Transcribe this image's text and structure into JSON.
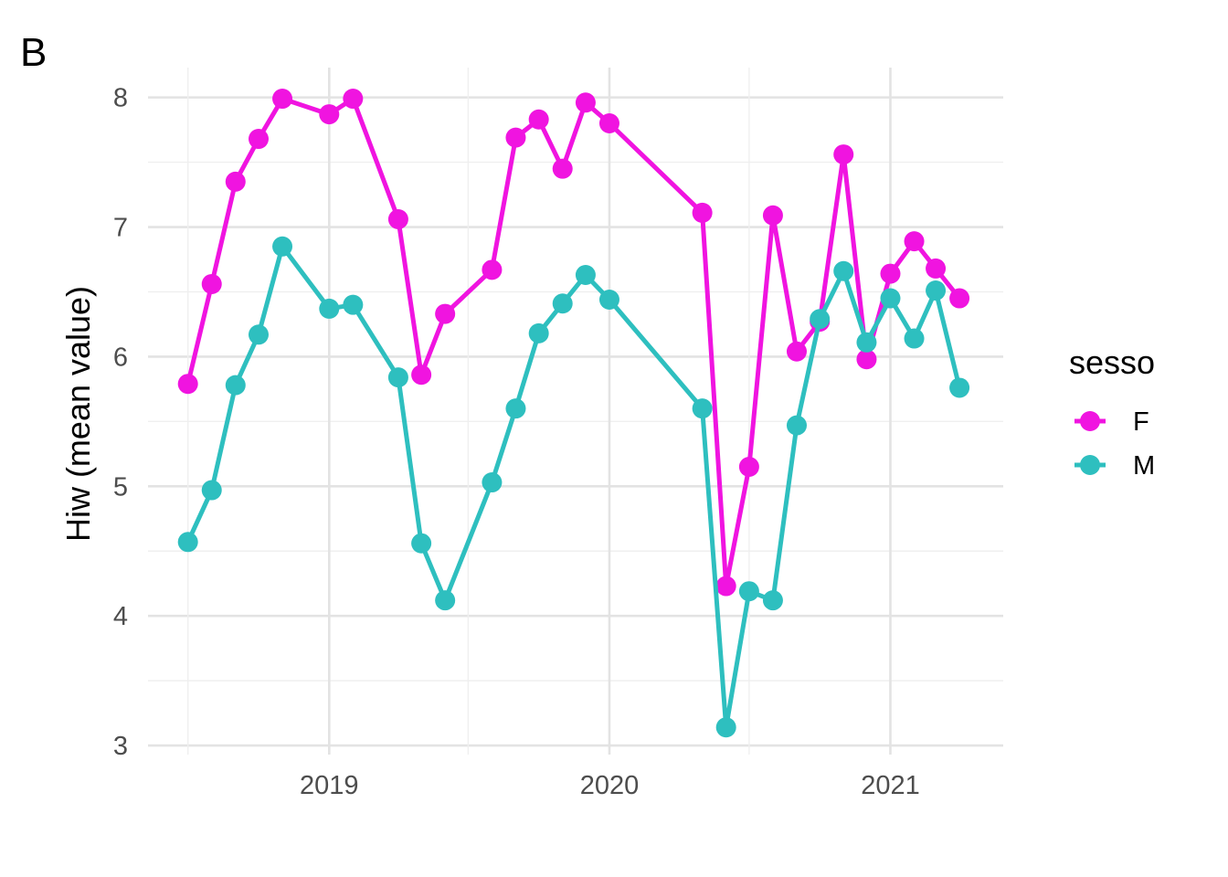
{
  "chart_data": {
    "type": "line",
    "panel_tag": "B",
    "title": "",
    "xlabel": "",
    "ylabel": "Hiw (mean value)",
    "x_ticks": [
      "2019",
      "2020",
      "2021"
    ],
    "y_ticks": [
      "3",
      "4",
      "5",
      "6",
      "7",
      "8"
    ],
    "xlim": [
      "2018-05-10",
      "2021-05-28"
    ],
    "ylim": [
      2.93,
      8.23
    ],
    "grid": true,
    "show_markers": true,
    "legend": {
      "title": "sesso",
      "position": "right"
    },
    "series": [
      {
        "name": "F",
        "color": "#f014e0",
        "points": [
          [
            "2018-07-01",
            5.79
          ],
          [
            "2018-08-01",
            6.56
          ],
          [
            "2018-09-01",
            7.35
          ],
          [
            "2018-10-01",
            7.68
          ],
          [
            "2018-11-01",
            7.99
          ],
          [
            "2019-01-01",
            7.87
          ],
          [
            "2019-02-01",
            7.99
          ],
          [
            "2019-04-01",
            7.06
          ],
          [
            "2019-05-01",
            5.86
          ],
          [
            "2019-06-01",
            6.33
          ],
          [
            "2019-08-01",
            6.67
          ],
          [
            "2019-09-01",
            7.69
          ],
          [
            "2019-10-01",
            7.83
          ],
          [
            "2019-11-01",
            7.45
          ],
          [
            "2019-12-01",
            7.96
          ],
          [
            "2020-01-01",
            7.8
          ],
          [
            "2020-05-01",
            7.11
          ],
          [
            "2020-06-01",
            4.23
          ],
          [
            "2020-07-01",
            5.15
          ],
          [
            "2020-08-01",
            7.09
          ],
          [
            "2020-09-01",
            6.04
          ],
          [
            "2020-10-01",
            6.27
          ],
          [
            "2020-11-01",
            7.56
          ],
          [
            "2020-12-01",
            5.98
          ],
          [
            "2021-01-01",
            6.64
          ],
          [
            "2021-02-01",
            6.89
          ],
          [
            "2021-03-01",
            6.68
          ],
          [
            "2021-04-01",
            6.45
          ]
        ]
      },
      {
        "name": "M",
        "color": "#2ebfbf",
        "points": [
          [
            "2018-07-01",
            4.57
          ],
          [
            "2018-08-01",
            4.97
          ],
          [
            "2018-09-01",
            5.78
          ],
          [
            "2018-10-01",
            6.17
          ],
          [
            "2018-11-01",
            6.85
          ],
          [
            "2019-01-01",
            6.37
          ],
          [
            "2019-02-01",
            6.4
          ],
          [
            "2019-04-01",
            5.84
          ],
          [
            "2019-05-01",
            4.56
          ],
          [
            "2019-06-01",
            4.12
          ],
          [
            "2019-08-01",
            5.03
          ],
          [
            "2019-09-01",
            5.6
          ],
          [
            "2019-10-01",
            6.18
          ],
          [
            "2019-11-01",
            6.41
          ],
          [
            "2019-12-01",
            6.63
          ],
          [
            "2020-01-01",
            6.44
          ],
          [
            "2020-05-01",
            5.6
          ],
          [
            "2020-06-01",
            3.14
          ],
          [
            "2020-07-01",
            4.19
          ],
          [
            "2020-08-01",
            4.12
          ],
          [
            "2020-09-01",
            5.47
          ],
          [
            "2020-10-01",
            6.29
          ],
          [
            "2020-11-01",
            6.66
          ],
          [
            "2020-12-01",
            6.11
          ],
          [
            "2021-01-01",
            6.45
          ],
          [
            "2021-02-01",
            6.14
          ],
          [
            "2021-03-01",
            6.51
          ],
          [
            "2021-04-01",
            5.76
          ]
        ]
      }
    ]
  }
}
